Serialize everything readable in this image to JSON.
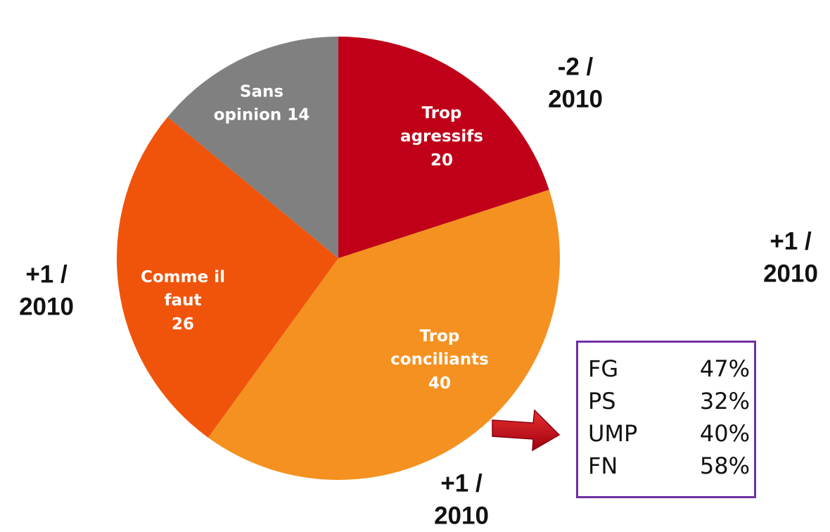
{
  "chart_data": {
    "type": "pie",
    "categories": [
      "Trop agressifs",
      "Trop conciliants",
      "Comme il faut",
      "Sans opinion"
    ],
    "values": [
      20,
      40,
      26,
      14
    ],
    "colors": [
      "#c00018",
      "#f59120",
      "#f0540a",
      "#808080"
    ],
    "annotations": [
      "-2 / 2010",
      "+1 / 2010",
      "+1 / 2010",
      "+1 / 2010"
    ],
    "breakdown": [
      [
        "FG",
        "47%"
      ],
      [
        "PS",
        "32%"
      ],
      [
        "UMP",
        "40%"
      ],
      [
        "FN",
        "58%"
      ]
    ]
  }
}
